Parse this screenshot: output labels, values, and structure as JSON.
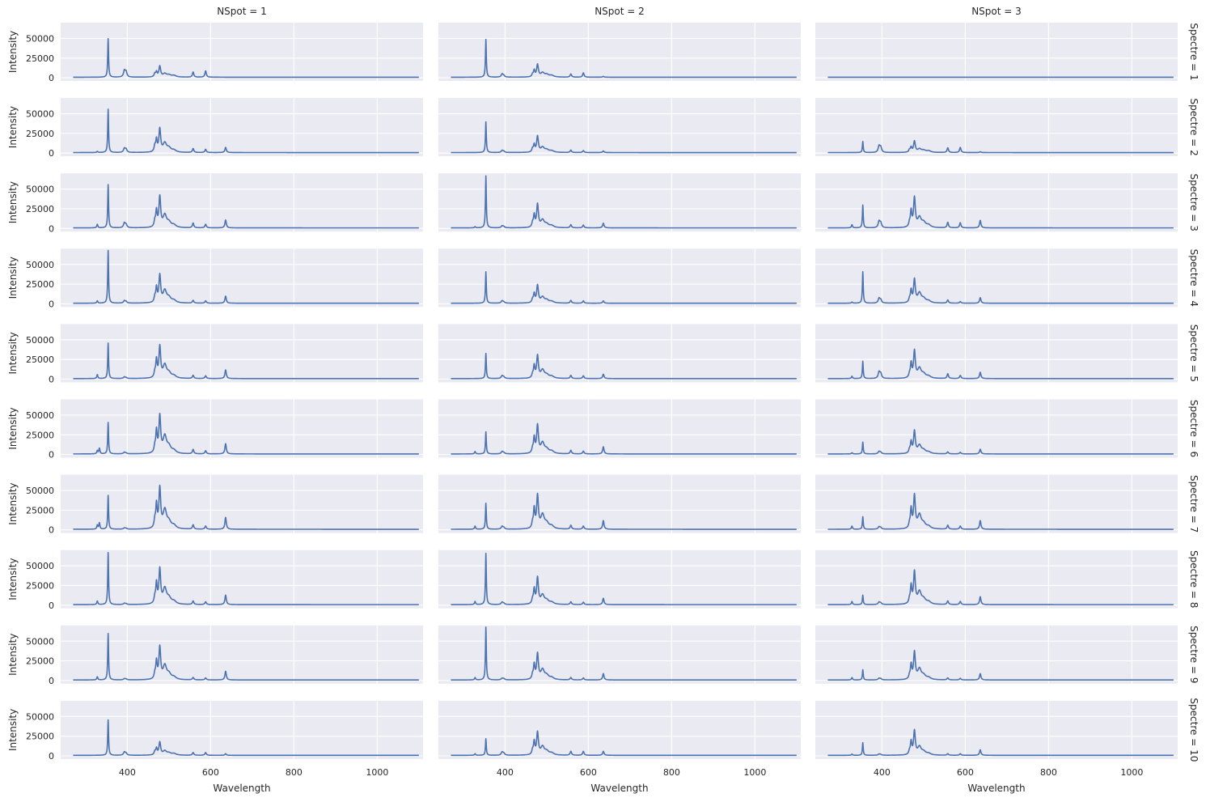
{
  "chart_data": {
    "type": "line",
    "layout": "facet-grid",
    "col_var": "NSpot",
    "row_var": "Spectre",
    "col_titles": [
      "NSpot = 1",
      "NSpot = 2",
      "NSpot = 3"
    ],
    "row_titles": [
      "Spectre = 1",
      "Spectre = 2",
      "Spectre = 3",
      "Spectre = 4",
      "Spectre = 5",
      "Spectre = 6",
      "Spectre = 7",
      "Spectre = 8",
      "Spectre = 9",
      "Spectre = 10"
    ],
    "xlabel": "Wavelength",
    "ylabel": "Intensity",
    "xlim": [
      240,
      1110
    ],
    "ylim": [
      -4000,
      70000
    ],
    "xticks": [
      400,
      600,
      800,
      1000
    ],
    "xtick_labels": [
      "400",
      "600",
      "800",
      "1000"
    ],
    "yticks": [
      0,
      25000,
      50000
    ],
    "ytick_labels": [
      "0",
      "25000",
      "50000"
    ],
    "x_range": [
      270,
      1100
    ],
    "baseline": 700,
    "grid": true,
    "style": {
      "background": "#eaeaf2",
      "grid": "#ffffff",
      "line": "#4c72b0"
    },
    "peak_wavelengths": [
      328,
      333,
      354,
      356,
      393,
      397,
      466,
      470,
      478,
      490,
      500,
      512,
      558,
      588,
      636
    ],
    "series": [
      {
        "row": 1,
        "col": 1,
        "peaks": [
          0,
          0,
          49000,
          0,
          8000,
          6500,
          4000,
          6000,
          13500,
          4000,
          2500,
          2000,
          6500,
          8000,
          0
        ]
      },
      {
        "row": 1,
        "col": 2,
        "peaks": [
          0,
          0,
          48000,
          0,
          4000,
          2000,
          3000,
          8000,
          15500,
          5000,
          3000,
          2000,
          4000,
          5500,
          1000
        ]
      },
      {
        "row": 1,
        "col": 3,
        "peaks": [
          0,
          0,
          0,
          0,
          0,
          0,
          0,
          0,
          0,
          0,
          0,
          0,
          0,
          0,
          0
        ]
      },
      {
        "row": 2,
        "col": 1,
        "peaks": [
          1500,
          0,
          55000,
          0,
          5000,
          4000,
          7000,
          15000,
          29000,
          11000,
          5000,
          2500,
          5000,
          4000,
          6500
        ]
      },
      {
        "row": 2,
        "col": 2,
        "peaks": [
          0,
          0,
          39000,
          0,
          2500,
          1500,
          4000,
          9000,
          20000,
          6000,
          3000,
          2000,
          3000,
          2500,
          2000
        ]
      },
      {
        "row": 2,
        "col": 3,
        "peaks": [
          0,
          0,
          14000,
          0,
          8000,
          6500,
          3000,
          6000,
          14000,
          4000,
          2500,
          2000,
          6000,
          6500,
          1000
        ]
      },
      {
        "row": 3,
        "col": 1,
        "peaks": [
          4500,
          0,
          55000,
          0,
          6000,
          4000,
          7000,
          20000,
          38000,
          15000,
          6000,
          3000,
          6000,
          4500,
          10000
        ]
      },
      {
        "row": 3,
        "col": 2,
        "peaks": [
          1500,
          0,
          66000,
          0,
          2500,
          1500,
          5000,
          15000,
          29000,
          9000,
          4000,
          2500,
          4000,
          3500,
          6000
        ]
      },
      {
        "row": 3,
        "col": 3,
        "peaks": [
          4000,
          0,
          29000,
          0,
          8000,
          6000,
          5000,
          20000,
          37000,
          12000,
          6000,
          3000,
          7000,
          6500,
          9500
        ]
      },
      {
        "row": 4,
        "col": 1,
        "peaks": [
          3000,
          0,
          67000,
          0,
          3000,
          2000,
          6000,
          18000,
          34000,
          15000,
          6000,
          3000,
          3500,
          3000,
          9000
        ]
      },
      {
        "row": 4,
        "col": 2,
        "peaks": [
          0,
          0,
          40000,
          0,
          3000,
          1500,
          4000,
          11000,
          22000,
          7000,
          3500,
          2000,
          3500,
          3000,
          3000
        ]
      },
      {
        "row": 4,
        "col": 3,
        "peaks": [
          1500,
          0,
          40000,
          0,
          6000,
          4000,
          4000,
          15000,
          29000,
          12000,
          5000,
          2500,
          4000,
          2000,
          7000
        ]
      },
      {
        "row": 5,
        "col": 1,
        "peaks": [
          5000,
          0,
          45000,
          0,
          2000,
          1000,
          6000,
          22000,
          39000,
          16000,
          6000,
          3000,
          4000,
          3500,
          11000
        ]
      },
      {
        "row": 5,
        "col": 2,
        "peaks": [
          0,
          0,
          32000,
          0,
          3500,
          2000,
          4000,
          15000,
          28000,
          10000,
          4000,
          2500,
          4000,
          3500,
          5500
        ]
      },
      {
        "row": 5,
        "col": 3,
        "peaks": [
          3000,
          0,
          22000,
          0,
          8000,
          6000,
          4000,
          18000,
          34000,
          12000,
          5000,
          2500,
          6000,
          4000,
          8000
        ]
      },
      {
        "row": 6,
        "col": 1,
        "peaks": [
          4000,
          7000,
          40000,
          0,
          2000,
          1000,
          7000,
          27000,
          46000,
          21000,
          8000,
          3500,
          5500,
          4000,
          13000
        ]
      },
      {
        "row": 6,
        "col": 2,
        "peaks": [
          3000,
          0,
          28000,
          0,
          3000,
          1500,
          5000,
          19000,
          35000,
          13000,
          5000,
          3000,
          4500,
          3500,
          9000
        ]
      },
      {
        "row": 6,
        "col": 3,
        "peaks": [
          1500,
          0,
          15000,
          0,
          3000,
          2000,
          4000,
          14000,
          28000,
          10000,
          4000,
          2000,
          2500,
          2000,
          6000
        ]
      },
      {
        "row": 7,
        "col": 1,
        "peaks": [
          5000,
          8000,
          43000,
          0,
          1500,
          1000,
          9000,
          29000,
          50000,
          23000,
          8000,
          4000,
          5500,
          4000,
          15000
        ]
      },
      {
        "row": 7,
        "col": 2,
        "peaks": [
          4000,
          0,
          33000,
          0,
          3500,
          2000,
          6000,
          24000,
          41000,
          17000,
          6500,
          3500,
          5000,
          4000,
          11000
        ]
      },
      {
        "row": 7,
        "col": 3,
        "peaks": [
          4000,
          0,
          16000,
          0,
          3000,
          2000,
          5000,
          24000,
          41000,
          17000,
          6000,
          3000,
          5000,
          4000,
          11000
        ]
      },
      {
        "row": 8,
        "col": 1,
        "peaks": [
          4500,
          0,
          66000,
          0,
          1500,
          1000,
          7000,
          25000,
          43000,
          19000,
          7000,
          3500,
          4500,
          3500,
          12000
        ]
      },
      {
        "row": 8,
        "col": 2,
        "peaks": [
          4000,
          0,
          65000,
          0,
          3000,
          1500,
          5000,
          18000,
          33000,
          11000,
          4500,
          2500,
          3500,
          3000,
          8000
        ]
      },
      {
        "row": 8,
        "col": 3,
        "peaks": [
          4000,
          0,
          12000,
          0,
          3000,
          2000,
          5000,
          22000,
          40000,
          15000,
          6000,
          3000,
          4500,
          4000,
          10000
        ]
      },
      {
        "row": 9,
        "col": 1,
        "peaks": [
          4000,
          0,
          59000,
          0,
          1500,
          1000,
          6000,
          22000,
          40000,
          17000,
          6500,
          3000,
          3000,
          2500,
          11000
        ]
      },
      {
        "row": 9,
        "col": 2,
        "peaks": [
          3000,
          0,
          67000,
          0,
          2000,
          1500,
          5000,
          18000,
          32000,
          12000,
          5000,
          2500,
          3000,
          2500,
          8000
        ]
      },
      {
        "row": 9,
        "col": 3,
        "peaks": [
          3000,
          0,
          13000,
          0,
          2000,
          1500,
          4000,
          18000,
          34000,
          13000,
          5000,
          2500,
          2500,
          2000,
          8000
        ]
      },
      {
        "row": 10,
        "col": 1,
        "peaks": [
          0,
          0,
          45000,
          0,
          4000,
          2500,
          4000,
          8000,
          16000,
          5000,
          2500,
          2000,
          3500,
          3500,
          2000
        ]
      },
      {
        "row": 10,
        "col": 2,
        "peaks": [
          2000,
          0,
          21000,
          0,
          4000,
          2500,
          5000,
          16000,
          28000,
          10000,
          4500,
          2500,
          5000,
          5000,
          5000
        ]
      },
      {
        "row": 10,
        "col": 3,
        "peaks": [
          1500,
          0,
          16000,
          0,
          1500,
          1000,
          4000,
          16000,
          30000,
          10000,
          4000,
          2000,
          2000,
          2000,
          7000
        ]
      }
    ]
  }
}
